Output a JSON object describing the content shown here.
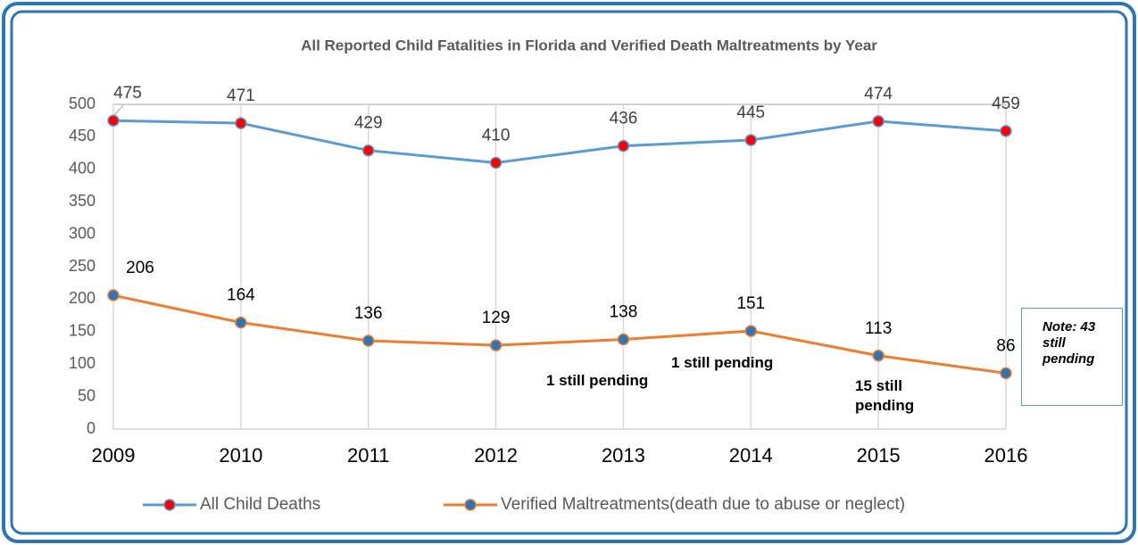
{
  "chart_data": {
    "type": "line",
    "title": "All Reported Child Fatalities in Florida and Verified Death Maltreatments by Year",
    "categories": [
      "2009",
      "2010",
      "2011",
      "2012",
      "2013",
      "2014",
      "2015",
      "2016"
    ],
    "series": [
      {
        "name": "All Child Deaths",
        "color": "#5b9bd5",
        "marker_color": "#ff0000",
        "values": [
          475,
          471,
          429,
          410,
          436,
          445,
          474,
          459
        ]
      },
      {
        "name": "Verified Maltreatments(death due to abuse or neglect)",
        "color": "#ed7d31",
        "marker_color": "#2e75b6",
        "values": [
          206,
          164,
          136,
          129,
          138,
          151,
          113,
          86
        ]
      }
    ],
    "ylim": [
      0,
      500
    ],
    "yticks": [
      0,
      50,
      100,
      150,
      200,
      250,
      300,
      350,
      400,
      450,
      500
    ],
    "grid": true,
    "legend": "bottom",
    "annotations": [
      "1 still pending",
      "1 still pending",
      "15 still pending"
    ],
    "note": "Note: 43 still pending"
  }
}
